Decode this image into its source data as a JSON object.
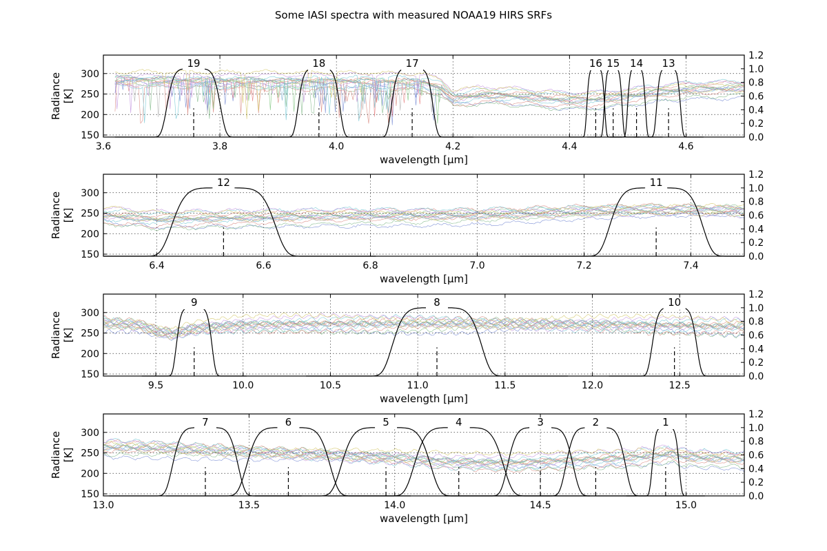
{
  "title": "Some IASI spectra with measured NOAA19 HIRS SRFs",
  "colors": {
    "srf": "#000000",
    "spectra": [
      "#1f3fb8",
      "#2e8b3a",
      "#c0392b",
      "#17a2b8",
      "#9b4dca",
      "#b5a000",
      "#7f7f7f",
      "#1f77b4",
      "#d62728",
      "#2ca02c"
    ]
  },
  "chart_data": [
    {
      "type": "line",
      "xlabel": "wavelength [μm]",
      "ylabel_left": [
        "Radiance",
        "[K]"
      ],
      "xlim": [
        3.6,
        4.7
      ],
      "ylim_left": [
        145,
        345
      ],
      "ylim_right": [
        0.0,
        1.2
      ],
      "xticks": [
        "3.6",
        "3.8",
        "4.0",
        "4.2",
        "4.4",
        "4.6"
      ],
      "yticks_left": [
        "150",
        "200",
        "250",
        "300"
      ],
      "yticks_right": [
        "0.0",
        "0.2",
        "0.4",
        "0.6",
        "0.8",
        "1.0",
        "1.2"
      ],
      "grid": true,
      "spectra_x_start": 3.62,
      "spectra_profile": [
        [
          3.62,
          285
        ],
        [
          3.7,
          283
        ],
        [
          3.8,
          282
        ],
        [
          3.9,
          281
        ],
        [
          4.0,
          281
        ],
        [
          4.1,
          280
        ],
        [
          4.15,
          279
        ],
        [
          4.18,
          265
        ],
        [
          4.2,
          240
        ],
        [
          4.25,
          248
        ],
        [
          4.3,
          246
        ],
        [
          4.35,
          240
        ],
        [
          4.4,
          235
        ],
        [
          4.45,
          238
        ],
        [
          4.5,
          245
        ],
        [
          4.55,
          255
        ],
        [
          4.6,
          262
        ],
        [
          4.65,
          264
        ],
        [
          4.7,
          266
        ]
      ],
      "channels": [
        {
          "channel": "19",
          "center": 3.755,
          "width": 0.09
        },
        {
          "channel": "18",
          "center": 3.97,
          "width": 0.07
        },
        {
          "channel": "17",
          "center": 4.13,
          "width": 0.07
        },
        {
          "channel": "16",
          "center": 4.445,
          "width": 0.03
        },
        {
          "channel": "15",
          "center": 4.475,
          "width": 0.03
        },
        {
          "channel": "14",
          "center": 4.515,
          "width": 0.03
        },
        {
          "channel": "13",
          "center": 4.57,
          "width": 0.04
        }
      ]
    },
    {
      "type": "line",
      "xlabel": "wavelength [μm]",
      "ylabel_left": [
        "Radiance",
        "[K]"
      ],
      "xlim": [
        6.3,
        7.5
      ],
      "ylim_left": [
        145,
        345
      ],
      "ylim_right": [
        0.0,
        1.2
      ],
      "xticks": [
        "6.4",
        "6.6",
        "6.8",
        "7.0",
        "7.2",
        "7.4"
      ],
      "yticks_left": [
        "150",
        "200",
        "250",
        "300"
      ],
      "yticks_right": [
        "0.0",
        "0.2",
        "0.4",
        "0.6",
        "0.8",
        "1.0",
        "1.2"
      ],
      "grid": true,
      "spectra_x_start": 6.3,
      "spectra_profile": [
        [
          6.3,
          245
        ],
        [
          6.4,
          235
        ],
        [
          6.5,
          238
        ],
        [
          6.6,
          240
        ],
        [
          6.7,
          243
        ],
        [
          6.8,
          244
        ],
        [
          6.9,
          245
        ],
        [
          7.0,
          246
        ],
        [
          7.1,
          250
        ],
        [
          7.2,
          255
        ],
        [
          7.3,
          258
        ],
        [
          7.4,
          258
        ],
        [
          7.5,
          256
        ]
      ],
      "channels": [
        {
          "channel": "12",
          "center": 6.525,
          "width": 0.19
        },
        {
          "channel": "11",
          "center": 7.335,
          "width": 0.17
        }
      ]
    },
    {
      "type": "line",
      "xlabel": "wavelength [μm]",
      "ylabel_left": [
        "Radiance",
        "[K]"
      ],
      "xlim": [
        9.2,
        12.87
      ],
      "ylim_left": [
        145,
        345
      ],
      "ylim_right": [
        0.0,
        1.2
      ],
      "xticks": [
        "9.5",
        "10.0",
        "10.5",
        "11.0",
        "11.5",
        "12.0",
        "12.5"
      ],
      "yticks_left": [
        "150",
        "200",
        "250",
        "300"
      ],
      "yticks_right": [
        "0.0",
        "0.2",
        "0.4",
        "0.6",
        "0.8",
        "1.0",
        "1.2"
      ],
      "grid": true,
      "spectra_x_start": 9.2,
      "spectra_profile": [
        [
          9.2,
          275
        ],
        [
          9.4,
          270
        ],
        [
          9.5,
          255
        ],
        [
          9.6,
          248
        ],
        [
          9.7,
          260
        ],
        [
          9.8,
          265
        ],
        [
          10.0,
          270
        ],
        [
          10.5,
          273
        ],
        [
          11.0,
          274
        ],
        [
          11.5,
          273
        ],
        [
          12.0,
          271
        ],
        [
          12.5,
          268
        ],
        [
          12.87,
          266
        ]
      ],
      "channels": [
        {
          "channel": "9",
          "center": 9.72,
          "width": 0.2
        },
        {
          "channel": "8",
          "center": 11.11,
          "width": 0.5
        },
        {
          "channel": "10",
          "center": 12.47,
          "width": 0.25
        }
      ]
    },
    {
      "type": "line",
      "xlabel": "wavelength [μm]",
      "ylabel_left": [
        "Radiance",
        "[K]"
      ],
      "xlim": [
        13.0,
        15.2
      ],
      "ylim_left": [
        145,
        345
      ],
      "ylim_right": [
        0.0,
        1.2
      ],
      "xticks": [
        "13.0",
        "13.5",
        "14.0",
        "14.5",
        "15.0"
      ],
      "yticks_left": [
        "150",
        "200",
        "250",
        "300"
      ],
      "yticks_right": [
        "0.0",
        "0.2",
        "0.4",
        "0.6",
        "0.8",
        "1.0",
        "1.2"
      ],
      "grid": true,
      "spectra_x_start": 13.0,
      "spectra_profile": [
        [
          13.0,
          265
        ],
        [
          13.2,
          262
        ],
        [
          13.4,
          255
        ],
        [
          13.6,
          250
        ],
        [
          13.8,
          245
        ],
        [
          14.0,
          238
        ],
        [
          14.2,
          228
        ],
        [
          14.4,
          225
        ],
        [
          14.6,
          232
        ],
        [
          14.8,
          238
        ],
        [
          14.95,
          248
        ],
        [
          15.0,
          240
        ],
        [
          15.2,
          235
        ]
      ],
      "channels": [
        {
          "channel": "7",
          "center": 13.35,
          "width": 0.22
        },
        {
          "channel": "6",
          "center": 13.635,
          "width": 0.28
        },
        {
          "channel": "5",
          "center": 13.97,
          "width": 0.3
        },
        {
          "channel": "4",
          "center": 14.22,
          "width": 0.3
        },
        {
          "channel": "3",
          "center": 14.5,
          "width": 0.22
        },
        {
          "channel": "2",
          "center": 14.69,
          "width": 0.2
        },
        {
          "channel": "1",
          "center": 14.93,
          "width": 0.09
        }
      ]
    }
  ]
}
